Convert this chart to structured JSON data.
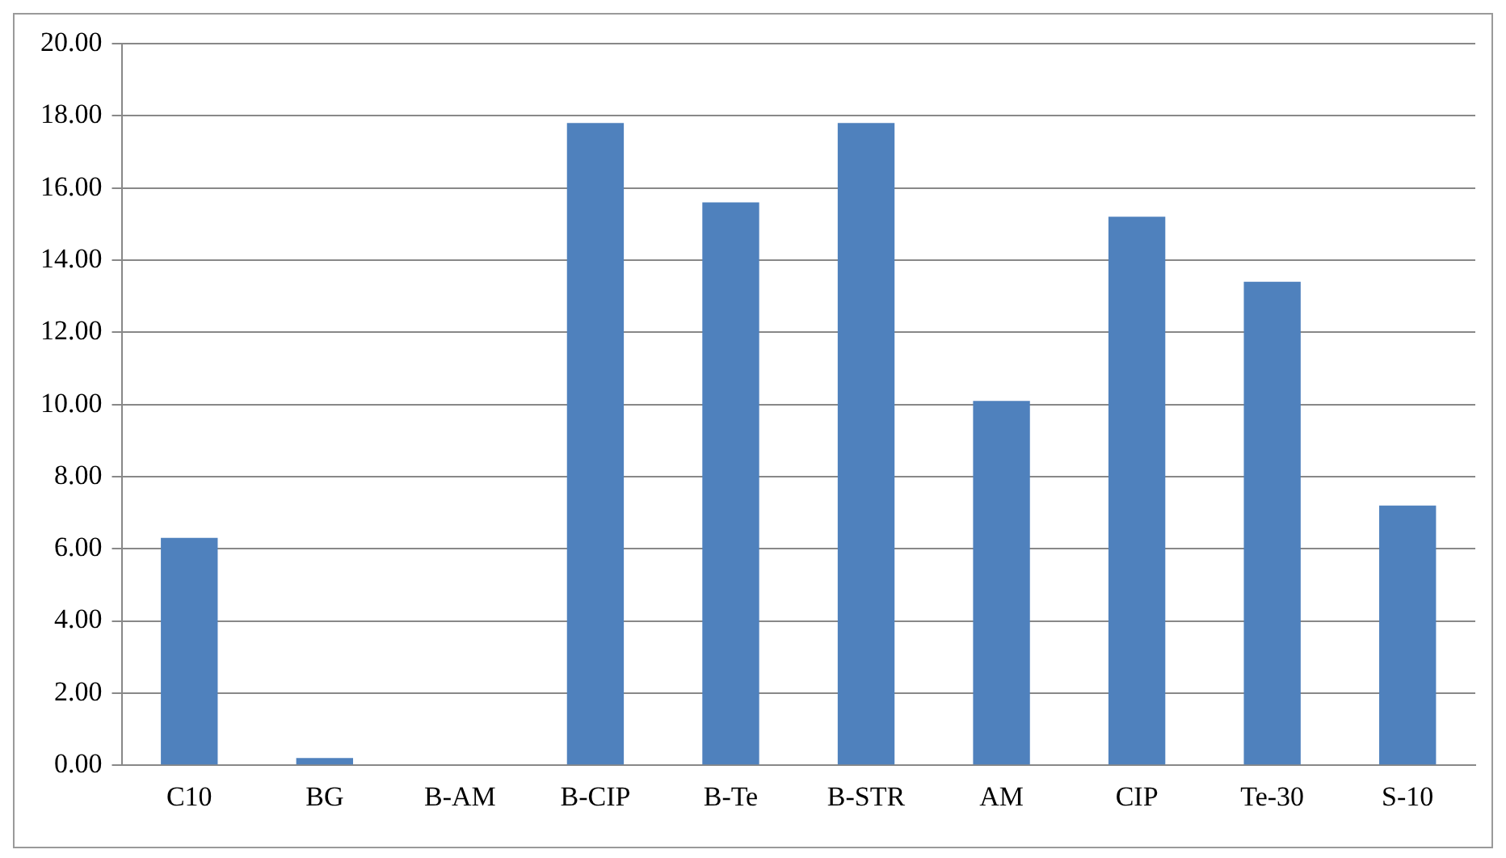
{
  "chart_data": {
    "type": "bar",
    "categories": [
      "C10",
      "BG",
      "B-AM",
      "B-CIP",
      "B-Te",
      "B-STR",
      "AM",
      "CIP",
      "Te-30",
      "S-10"
    ],
    "values": [
      6.3,
      0.2,
      0,
      17.8,
      15.6,
      17.8,
      10.1,
      15.2,
      13.4,
      7.2
    ],
    "color": "#4f81bd",
    "ylim": [
      0,
      20
    ],
    "yticks": [
      {
        "value": 0,
        "label": "0.00"
      },
      {
        "value": 2,
        "label": "2.00"
      },
      {
        "value": 4,
        "label": "4.00"
      },
      {
        "value": 6,
        "label": "6.00"
      },
      {
        "value": 8,
        "label": "8.00"
      },
      {
        "value": 10,
        "label": "10.00"
      },
      {
        "value": 12,
        "label": "12.00"
      },
      {
        "value": 14,
        "label": "14.00"
      },
      {
        "value": 16,
        "label": "16.00"
      },
      {
        "value": 18,
        "label": "18.00"
      },
      {
        "value": 20,
        "label": "20.00"
      }
    ],
    "grid": "y",
    "legend": false
  }
}
